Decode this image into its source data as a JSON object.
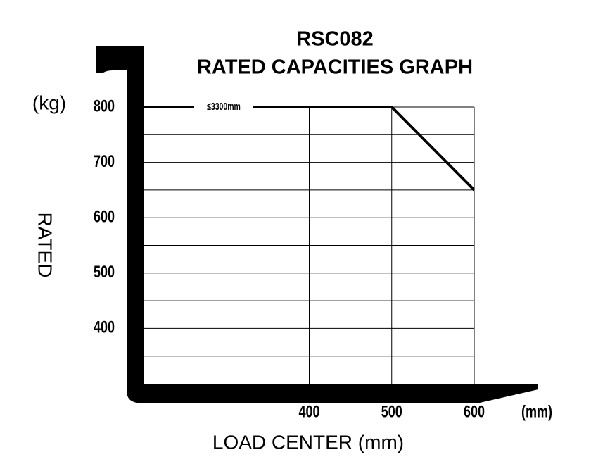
{
  "chart_data": {
    "type": "line",
    "title": "RSC082",
    "subtitle": "RATED CAPACITIES GRAPH",
    "y_unit": "(kg)",
    "x_unit": "(mm)",
    "y_label": "RATED",
    "x_label": "LOAD CENTER (mm)",
    "x": [
      200,
      500,
      600
    ],
    "series": [
      {
        "name": "≤3300mm",
        "color": "#000000",
        "values": [
          800,
          800,
          650
        ]
      }
    ],
    "xlim": [
      200,
      600
    ],
    "xticks": [
      400,
      500,
      600
    ],
    "ylim": [
      300,
      800
    ],
    "yticks": [
      400,
      500,
      600,
      700,
      800
    ],
    "minor_yticks": [
      350,
      450,
      550,
      650,
      750
    ],
    "grid": true
  }
}
